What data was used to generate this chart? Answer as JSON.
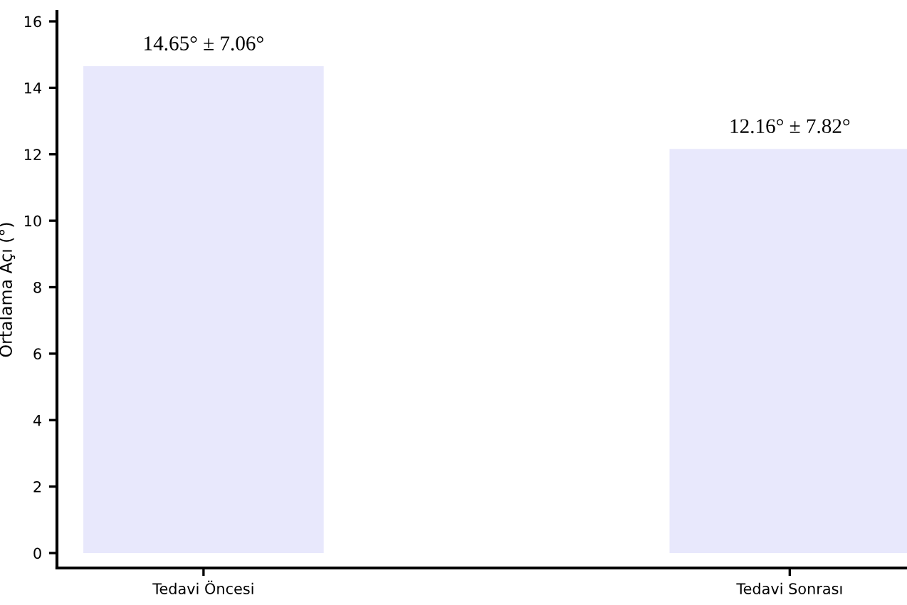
{
  "chart_data": {
    "type": "bar",
    "ylabel": "Ortalama Açı (°)",
    "categories": [
      "Tedavi Öncesi",
      "Tedavi Sonrası"
    ],
    "values": [
      14.65,
      12.16
    ],
    "color": "#e8e8fc",
    "value_labels": [
      "14.65° ± 7.06°",
      "12.16° ± 7.82°"
    ],
    "ylim": [
      -0.45,
      16.3
    ],
    "yticks": [
      0,
      2,
      4,
      6,
      8,
      10,
      12,
      14,
      16
    ],
    "grid": false,
    "legend": false
  }
}
